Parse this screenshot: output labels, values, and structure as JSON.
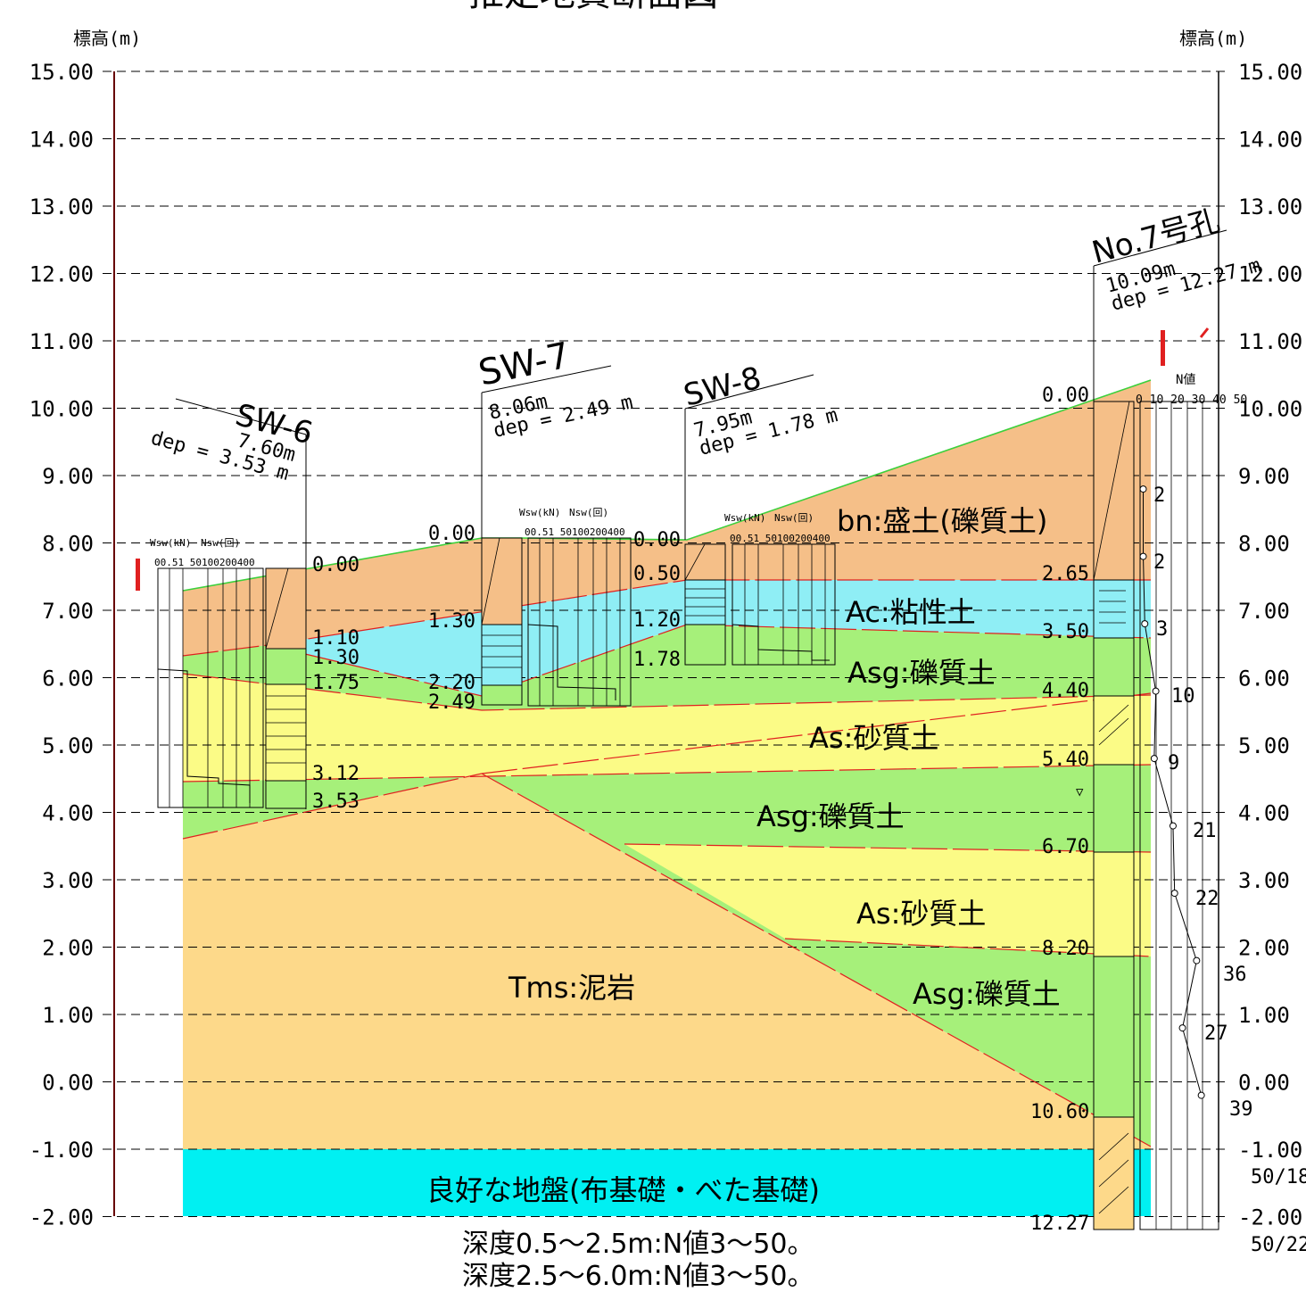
{
  "header_title": "推定地質断面図",
  "axis_left_label": "標高(m)",
  "axis_right_label": "標高(m)",
  "elevation_ticks": [
    "15.00",
    "14.00",
    "13.00",
    "12.00",
    "11.00",
    "10.00",
    "9.00",
    "8.00",
    "7.00",
    "6.00",
    "5.00",
    "4.00",
    "3.00",
    "2.00",
    "1.00",
    "0.00",
    "-1.00",
    "-2.00"
  ],
  "elevation_ticks_right": [
    "15.00",
    "14.00",
    "13.00",
    "12.00",
    "11.00",
    "10.00",
    "9.00",
    "8.00",
    "7.00",
    "6.00",
    "5.00",
    "4.00",
    "3.00",
    "2.00",
    "1.00",
    "0.00",
    "-1.00",
    "-2.00"
  ],
  "section_marker_left": "I",
  "section_marker_right": "I´",
  "layers": {
    "bn": "bn:盛土(礫質土)",
    "ac": "Ac:粘性土",
    "asg1": "Asg:礫質土",
    "as1": "As:砂質土",
    "asg2": "Asg:礫質土",
    "as2": "As:砂質土",
    "asg3": "Asg:礫質土",
    "tms": "Tms:泥岩",
    "good": "良好な地盤(布基礎・べた基礎)"
  },
  "notes": [
    "深度0.5～2.5m:N値3～50。",
    "深度2.5～6.0m:N値3～50。"
  ],
  "sw6": {
    "name": "SW-6",
    "elev": "7.60m",
    "dep": "dep = 3.53 m",
    "wsw": "Wsw(kN)",
    "nsw": "Nsw(回)",
    "scale": "00.51 50100200400",
    "depths": [
      "0.00",
      "1.10",
      "1.30",
      "1.75",
      "3.12",
      "3.53"
    ]
  },
  "sw7": {
    "name": "SW-7",
    "elev": "8.06m",
    "dep": "dep = 2.49 m",
    "wsw": "Wsw(kN)",
    "nsw": "Nsw(回)",
    "scale": "00.51 50100200400",
    "depths": [
      "0.00",
      "1.30",
      "2.20",
      "2.49"
    ]
  },
  "sw8": {
    "name": "SW-8",
    "elev": "7.95m",
    "dep": "dep = 1.78 m",
    "wsw": "Wsw(kN)",
    "nsw": "Nsw(回)",
    "scale": "00.51 50100200400",
    "depths": [
      "0.00",
      "0.50",
      "1.20",
      "1.78"
    ]
  },
  "no7": {
    "name": "No.7号孔",
    "elev": "10.09m",
    "dep": "dep = 12.27 m",
    "nlabel": "N値",
    "nscale": "0 10 20 30 40 50",
    "depths": [
      "0.00",
      "2.65",
      "3.50",
      "4.40",
      "5.40",
      "6.70",
      "8.20",
      "10.60",
      "12.27"
    ],
    "nvalues": [
      "2",
      "2",
      "3",
      "10",
      "9",
      "21",
      "22",
      "36",
      "27",
      "39",
      "50/18",
      "50/22"
    ],
    "n_points": [
      {
        "elev": 8.8,
        "n": 2
      },
      {
        "elev": 7.8,
        "n": 2
      },
      {
        "elev": 6.8,
        "n": 3
      },
      {
        "elev": 5.8,
        "n": 10
      },
      {
        "elev": 4.8,
        "n": 9
      },
      {
        "elev": 3.8,
        "n": 21
      },
      {
        "elev": 2.8,
        "n": 22
      },
      {
        "elev": 1.8,
        "n": 36
      },
      {
        "elev": 0.8,
        "n": 27
      },
      {
        "elev": -0.2,
        "n": 39
      }
    ]
  },
  "colors": {
    "bn": "#F5BF88",
    "ac": "#8FEEF5",
    "asg": "#A6F07A",
    "as": "#FBFB86",
    "tms": "#FDD98A",
    "good": "#00F0F2",
    "boundary": "#E02020",
    "surface": "#3CD03C"
  }
}
